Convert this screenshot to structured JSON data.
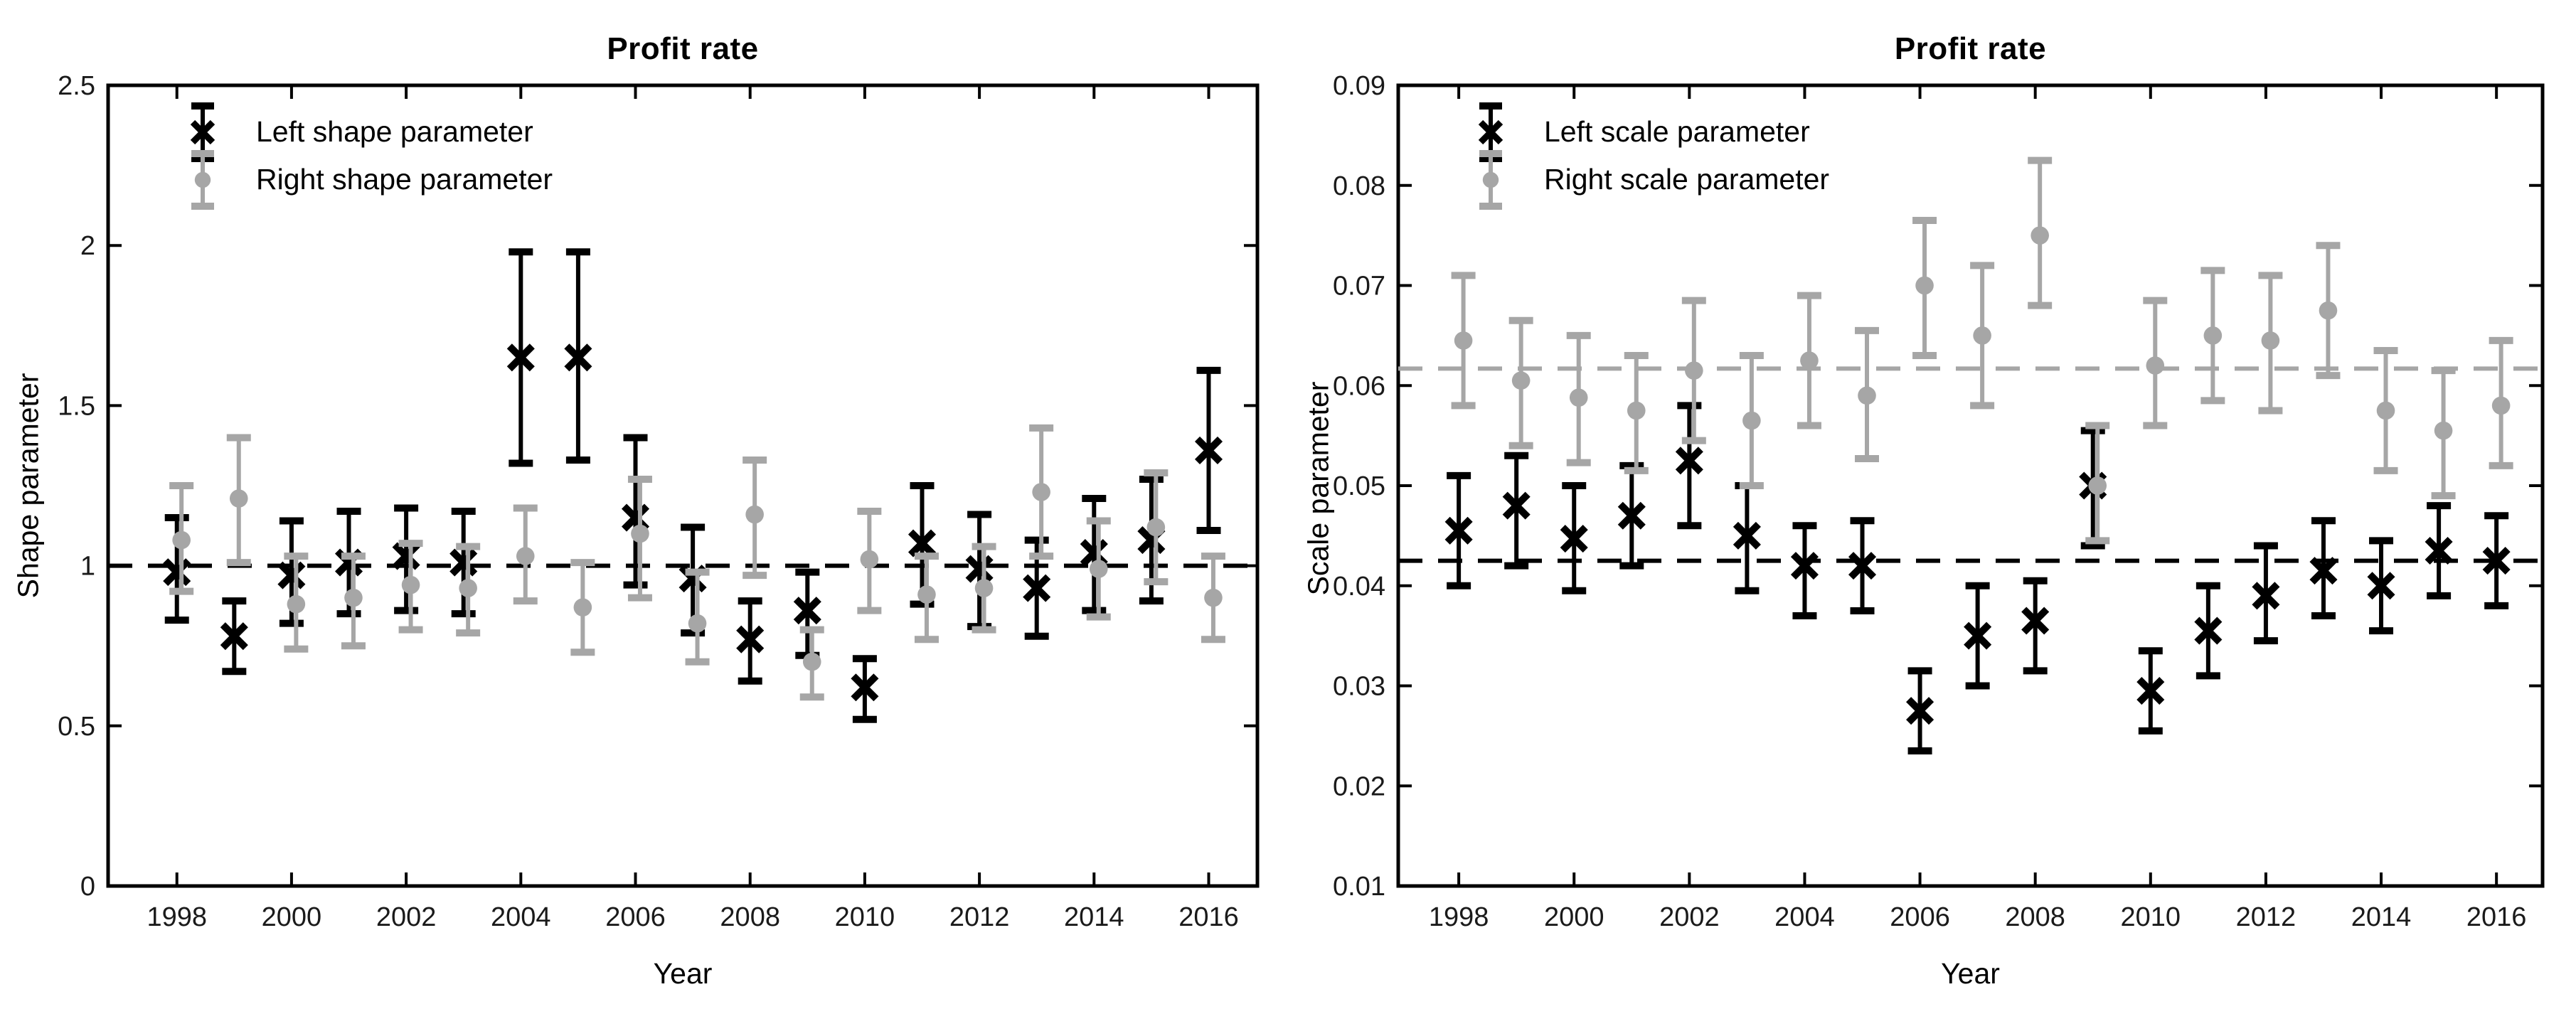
{
  "accent_colors": {
    "series_black": "#000000",
    "series_gray": "#a6a6a6"
  },
  "chart_data": [
    {
      "type": "scatter",
      "subtype": "errorbar",
      "title": "Profit rate",
      "xlabel": "Year",
      "ylabel": "Shape parameter",
      "xlim": [
        1996.8,
        2016.85
      ],
      "ylim": [
        0,
        2.5
      ],
      "xticks": [
        1998,
        2000,
        2002,
        2004,
        2006,
        2008,
        2010,
        2012,
        2014,
        2016
      ],
      "yticks": [
        0,
        0.5,
        1,
        1.5,
        2,
        2.5
      ],
      "ytick_labels": [
        "0",
        "0.5",
        "1",
        "1.5",
        "2",
        "2.5"
      ],
      "grid": false,
      "legend_position": "top-left",
      "years": [
        1998,
        1999,
        2000,
        2001,
        2002,
        2003,
        2004,
        2005,
        2006,
        2007,
        2008,
        2009,
        2010,
        2011,
        2012,
        2013,
        2014,
        2015,
        2016
      ],
      "reference_lines": [
        {
          "y": 1.0,
          "color": "#000000",
          "style": "dashed"
        }
      ],
      "series": [
        {
          "name": "Left shape parameter",
          "color": "#000000",
          "marker": "x",
          "x_offset": 0,
          "values": [
            0.98,
            0.78,
            0.97,
            1.01,
            1.03,
            1.01,
            1.65,
            1.65,
            1.15,
            0.96,
            0.77,
            0.86,
            0.62,
            1.07,
            0.99,
            0.93,
            1.04,
            1.08,
            1.36
          ],
          "ci_low": [
            0.83,
            0.67,
            0.82,
            0.85,
            0.86,
            0.85,
            1.32,
            1.33,
            0.94,
            0.79,
            0.64,
            0.72,
            0.52,
            0.88,
            0.81,
            0.78,
            0.86,
            0.89,
            1.11
          ],
          "ci_high": [
            1.15,
            0.89,
            1.14,
            1.17,
            1.18,
            1.17,
            1.98,
            1.98,
            1.4,
            1.12,
            0.89,
            0.98,
            0.71,
            1.25,
            1.16,
            1.08,
            1.21,
            1.27,
            1.61
          ]
        },
        {
          "name": "Right shape parameter",
          "color": "#a6a6a6",
          "marker": "circle",
          "x_offset": 0.08,
          "values": [
            1.08,
            1.21,
            0.88,
            0.9,
            0.94,
            0.93,
            1.03,
            0.87,
            1.1,
            0.82,
            1.16,
            0.7,
            1.02,
            0.91,
            0.93,
            1.23,
            0.99,
            1.12,
            0.9
          ],
          "ci_low": [
            0.92,
            1.01,
            0.74,
            0.75,
            0.8,
            0.79,
            0.89,
            0.73,
            0.9,
            0.7,
            0.97,
            0.59,
            0.86,
            0.77,
            0.8,
            1.03,
            0.84,
            0.95,
            0.77
          ],
          "ci_high": [
            1.25,
            1.4,
            1.03,
            1.03,
            1.07,
            1.06,
            1.18,
            1.01,
            1.27,
            0.98,
            1.33,
            0.8,
            1.17,
            1.03,
            1.06,
            1.43,
            1.14,
            1.29,
            1.03
          ]
        }
      ]
    },
    {
      "type": "scatter",
      "subtype": "errorbar",
      "title": "Profit rate",
      "xlabel": "Year",
      "ylabel": "Scale parameter",
      "xlim": [
        1996.95,
        2016.8
      ],
      "ylim": [
        0.01,
        0.09
      ],
      "xticks": [
        1998,
        2000,
        2002,
        2004,
        2006,
        2008,
        2010,
        2012,
        2014,
        2016
      ],
      "yticks": [
        0.01,
        0.02,
        0.03,
        0.04,
        0.05,
        0.06,
        0.07,
        0.08,
        0.09
      ],
      "ytick_labels": [
        "0.01",
        "0.02",
        "0.03",
        "0.04",
        "0.05",
        "0.06",
        "0.07",
        "0.08",
        "0.09"
      ],
      "grid": false,
      "legend_position": "top-left",
      "years": [
        1998,
        1999,
        2000,
        2001,
        2002,
        2003,
        2004,
        2005,
        2006,
        2007,
        2008,
        2009,
        2010,
        2011,
        2012,
        2013,
        2014,
        2015,
        2016
      ],
      "reference_lines": [
        {
          "y": 0.0617,
          "color": "#a6a6a6",
          "style": "dashed"
        },
        {
          "y": 0.0425,
          "color": "#000000",
          "style": "dashed"
        }
      ],
      "series": [
        {
          "name": "Left scale parameter",
          "color": "#000000",
          "marker": "x",
          "x_offset": 0,
          "values": [
            0.0455,
            0.048,
            0.0447,
            0.047,
            0.0525,
            0.045,
            0.042,
            0.042,
            0.0275,
            0.035,
            0.0365,
            0.05,
            0.0295,
            0.0355,
            0.039,
            0.0415,
            0.04,
            0.0435,
            0.0425
          ],
          "ci_low": [
            0.04,
            0.042,
            0.0395,
            0.042,
            0.046,
            0.0395,
            0.037,
            0.0375,
            0.0235,
            0.03,
            0.0315,
            0.044,
            0.0255,
            0.031,
            0.0345,
            0.037,
            0.0355,
            0.039,
            0.038
          ],
          "ci_high": [
            0.051,
            0.053,
            0.05,
            0.052,
            0.058,
            0.05,
            0.046,
            0.0465,
            0.0315,
            0.04,
            0.0405,
            0.0555,
            0.0335,
            0.04,
            0.044,
            0.0465,
            0.0445,
            0.048,
            0.047
          ]
        },
        {
          "name": "Right scale parameter",
          "color": "#a6a6a6",
          "marker": "circle",
          "x_offset": 0.08,
          "values": [
            0.0645,
            0.0605,
            0.0588,
            0.0575,
            0.0615,
            0.0565,
            0.0625,
            0.059,
            0.07,
            0.065,
            0.075,
            0.05,
            0.062,
            0.065,
            0.0645,
            0.0675,
            0.0575,
            0.0555,
            0.058
          ],
          "ci_low": [
            0.058,
            0.054,
            0.0523,
            0.0515,
            0.0545,
            0.05,
            0.056,
            0.0527,
            0.063,
            0.058,
            0.068,
            0.0445,
            0.056,
            0.0585,
            0.0575,
            0.061,
            0.0515,
            0.049,
            0.052
          ],
          "ci_high": [
            0.071,
            0.0665,
            0.065,
            0.063,
            0.0685,
            0.063,
            0.069,
            0.0655,
            0.0765,
            0.072,
            0.0825,
            0.056,
            0.0685,
            0.0715,
            0.071,
            0.074,
            0.0635,
            0.0615,
            0.0645
          ]
        }
      ]
    }
  ]
}
